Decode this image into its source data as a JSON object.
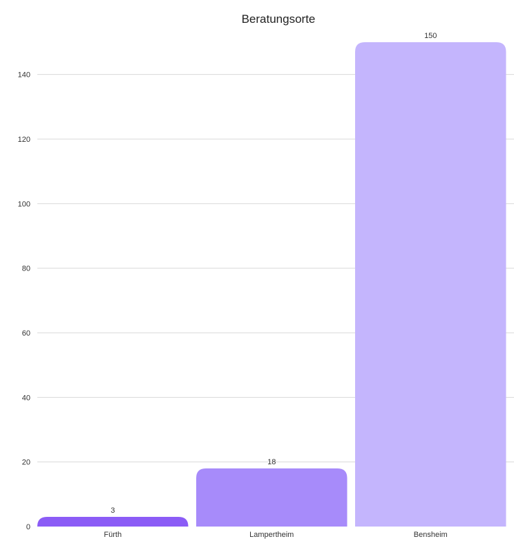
{
  "chart_data": {
    "type": "bar",
    "title": "Beratungsorte",
    "xlabel": "",
    "ylabel": "",
    "categories": [
      "Fürth",
      "Lampertheim",
      "Bensheim"
    ],
    "values": [
      3,
      18,
      150
    ],
    "value_labels": [
      "3",
      "18",
      "150"
    ],
    "ylim": [
      0,
      150
    ],
    "yticks": [
      0,
      20,
      40,
      60,
      80,
      100,
      120,
      140
    ],
    "grid": true,
    "legend": "none",
    "colors": [
      "#8b5cf6",
      "#a78bfa",
      "#c4b5fd"
    ]
  }
}
